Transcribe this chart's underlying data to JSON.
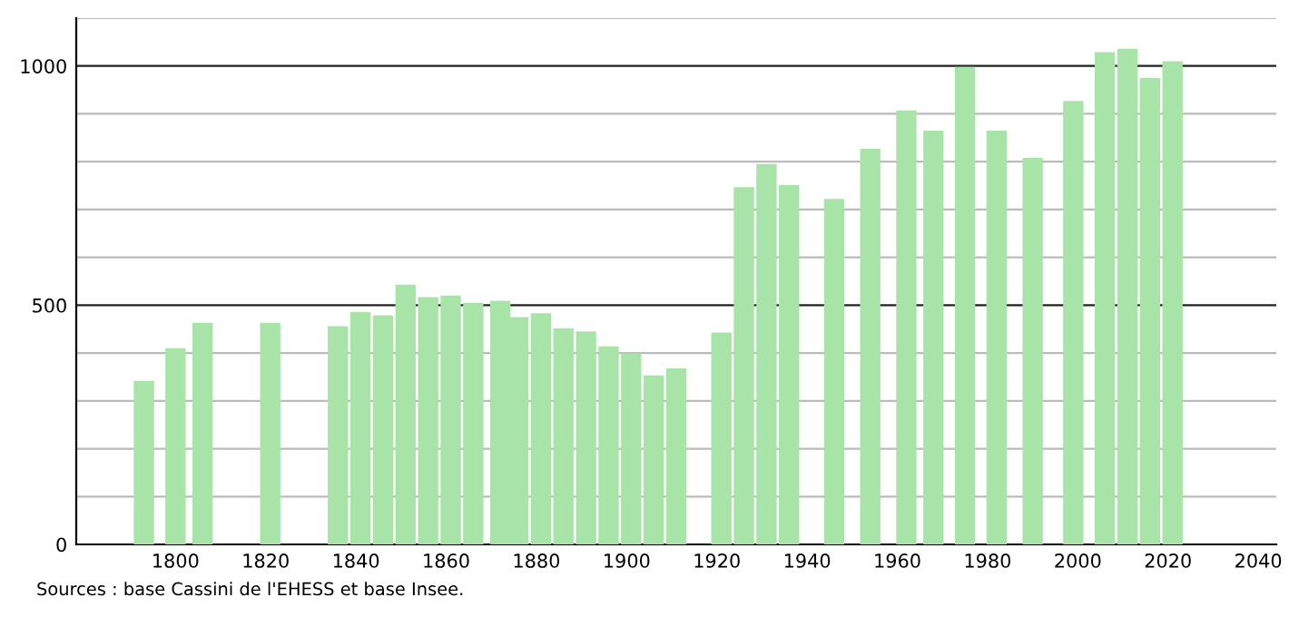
{
  "chart_data": {
    "type": "bar",
    "x": [
      1793,
      1800,
      1806,
      1821,
      1836,
      1841,
      1846,
      1851,
      1856,
      1861,
      1866,
      1872,
      1876,
      1881,
      1886,
      1891,
      1896,
      1901,
      1906,
      1911,
      1921,
      1926,
      1931,
      1936,
      1946,
      1954,
      1962,
      1968,
      1975,
      1982,
      1990,
      1999,
      2006,
      2011,
      2016,
      2021
    ],
    "values": [
      342,
      410,
      463,
      463,
      456,
      486,
      479,
      543,
      517,
      520,
      505,
      509,
      475,
      483,
      452,
      445,
      414,
      399,
      353,
      368,
      443,
      747,
      795,
      751,
      722,
      827,
      907,
      865,
      998,
      865,
      808,
      927,
      1029,
      1036,
      975,
      1010
    ],
    "color": "#a8e4a8",
    "xlim": [
      1778,
      2044
    ],
    "xticks": [
      1800,
      1820,
      1840,
      1860,
      1880,
      1900,
      1920,
      1940,
      1960,
      1980,
      2000,
      2020,
      2040
    ],
    "ylim": [
      0,
      1100
    ],
    "yticks": [
      0,
      {
        "value": 100,
        "label": null
      },
      {
        "value": 200,
        "label": null
      },
      {
        "value": 300,
        "label": null
      },
      {
        "value": 400,
        "label": null
      },
      500,
      {
        "value": 600,
        "label": null
      },
      {
        "value": 700,
        "label": null
      },
      {
        "value": 800,
        "label": null
      },
      {
        "value": 900,
        "label": null
      },
      1000,
      {
        "value": 1100,
        "label": null
      }
    ],
    "grid": "y",
    "annotations": [
      "Sources : base Cassini de l'EHESS et base Insee."
    ]
  }
}
